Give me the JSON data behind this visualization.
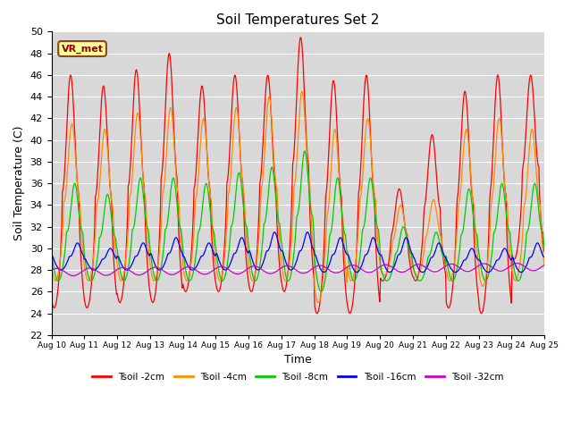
{
  "title": "Soil Temperatures Set 2",
  "xlabel": "Time",
  "ylabel": "Soil Temperature (C)",
  "ylim": [
    22,
    50
  ],
  "yticks": [
    22,
    24,
    26,
    28,
    30,
    32,
    34,
    36,
    38,
    40,
    42,
    44,
    46,
    48,
    50
  ],
  "xtick_labels": [
    "Aug 10",
    "Aug 11",
    "Aug 12",
    "Aug 13",
    "Aug 14",
    "Aug 15",
    "Aug 16",
    "Aug 17",
    "Aug 18",
    "Aug 19",
    "Aug 20",
    "Aug 21",
    "Aug 22",
    "Aug 23",
    "Aug 24",
    "Aug 25"
  ],
  "annotation_text": "VR_met",
  "colors": {
    "Tsoil -2cm": "#ff0000",
    "Tsoil -4cm": "#ff8c00",
    "Tsoil -8cm": "#00cc00",
    "Tsoil -16cm": "#0000ff",
    "Tsoil -32cm": "#cc00cc"
  },
  "axes_bg": "#d8d8d8",
  "legend_labels": [
    "Tsoil -2cm",
    "Tsoil -4cm",
    "Tsoil -8cm",
    "Tsoil -16cm",
    "Tsoil -32cm"
  ]
}
